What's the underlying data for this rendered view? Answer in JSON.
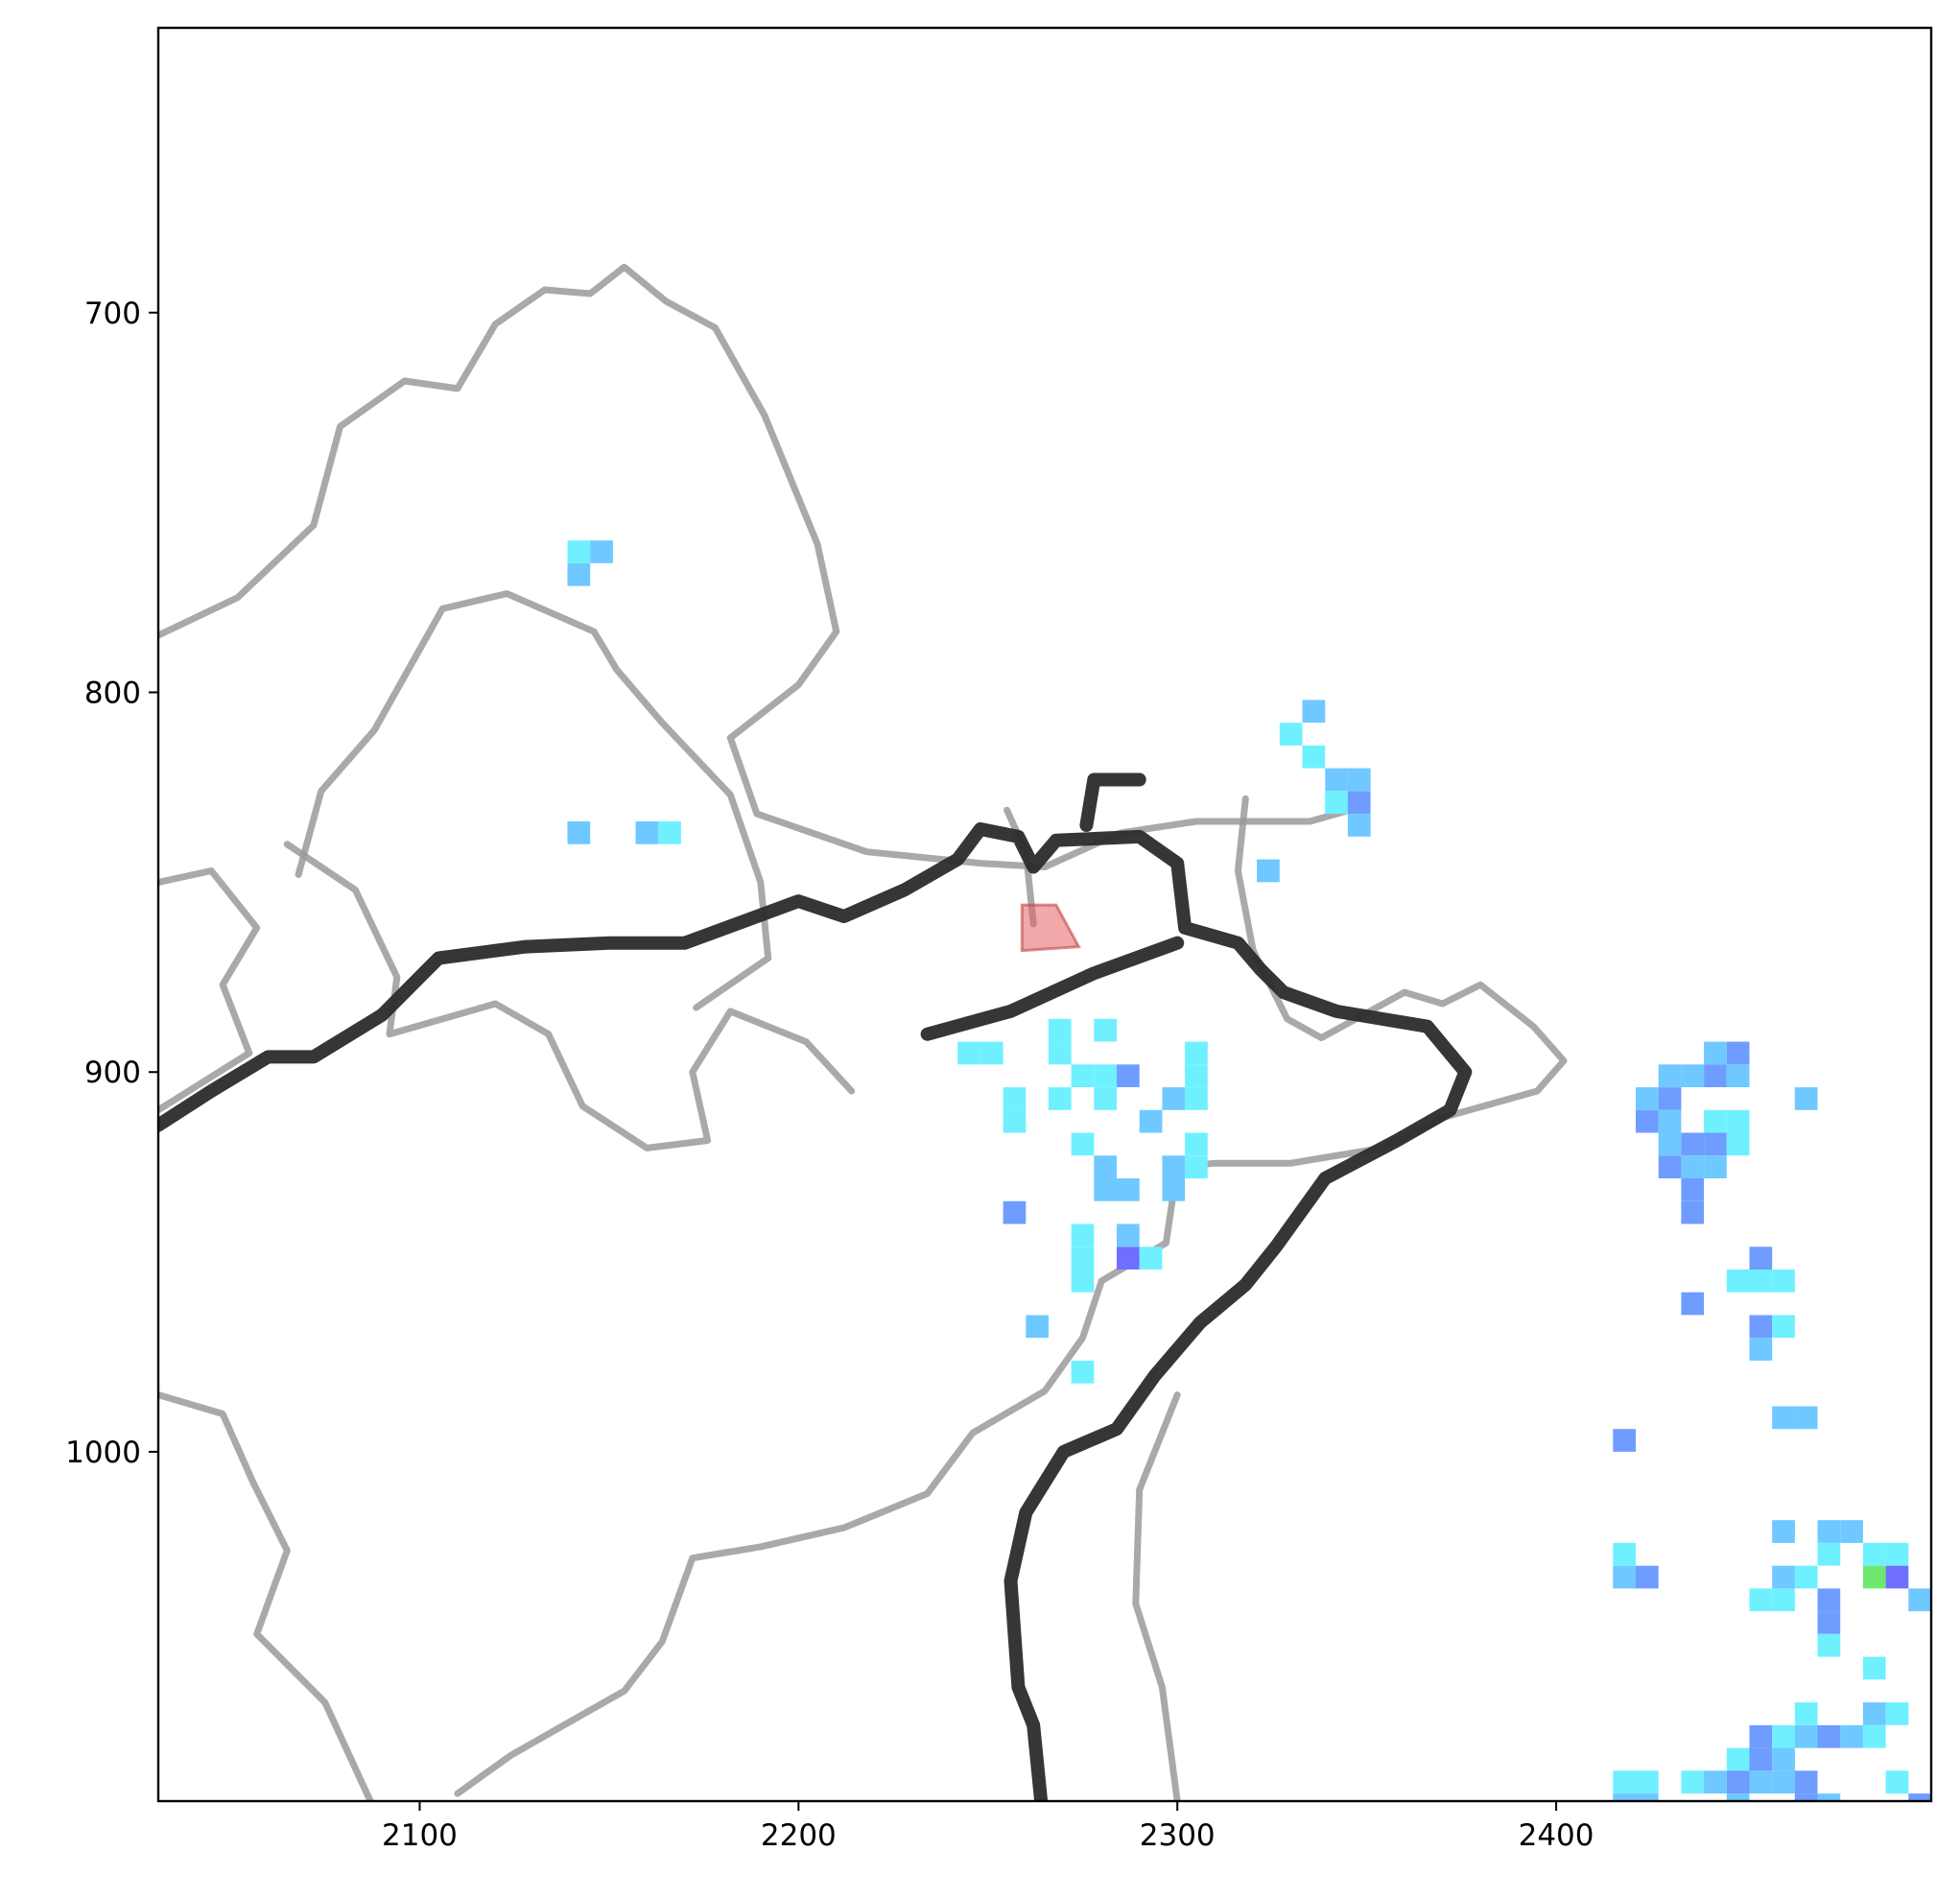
{
  "chart_data": {
    "type": "heatmap",
    "title": "",
    "xlabel": "",
    "ylabel": "",
    "xlim": [
      2031,
      2499
    ],
    "ylim": [
      1092,
      625
    ],
    "x_ticks": [
      2100,
      2200,
      2300,
      2400
    ],
    "x_tick_labels": [
      "2100",
      "2200",
      "2300",
      "2400"
    ],
    "y_ticks": [
      700,
      800,
      900,
      1000
    ],
    "y_tick_labels": [
      "700",
      "800",
      "900",
      "1000"
    ],
    "grid": false,
    "legend": "none",
    "colors": {
      "cyan": "#6ff0ff",
      "sky": "#6fc8ff",
      "blue": "#6f9cff",
      "indigo": "#6f6fff",
      "green": "#6fe86f",
      "highlight": "#e86060",
      "boundary_thin": "#9a9a9a",
      "boundary_thick": "#2b2b2b"
    },
    "pixel_size": 6,
    "cells": [
      {
        "x": 2139,
        "y": 760,
        "c": "cyan"
      },
      {
        "x": 2145,
        "y": 760,
        "c": "sky"
      },
      {
        "x": 2139,
        "y": 766,
        "c": "sky"
      },
      {
        "x": 2139,
        "y": 834,
        "c": "sky"
      },
      {
        "x": 2157,
        "y": 834,
        "c": "sky"
      },
      {
        "x": 2163,
        "y": 834,
        "c": "cyan"
      },
      {
        "x": 2327,
        "y": 808,
        "c": "cyan"
      },
      {
        "x": 2333,
        "y": 802,
        "c": "sky"
      },
      {
        "x": 2333,
        "y": 814,
        "c": "cyan"
      },
      {
        "x": 2339,
        "y": 820,
        "c": "sky"
      },
      {
        "x": 2345,
        "y": 820,
        "c": "sky"
      },
      {
        "x": 2339,
        "y": 826,
        "c": "cyan"
      },
      {
        "x": 2345,
        "y": 826,
        "c": "blue"
      },
      {
        "x": 2345,
        "y": 832,
        "c": "sky"
      },
      {
        "x": 2321,
        "y": 844,
        "c": "sky"
      },
      {
        "x": 2242,
        "y": 892,
        "c": "cyan"
      },
      {
        "x": 2248,
        "y": 892,
        "c": "cyan"
      },
      {
        "x": 2266,
        "y": 886,
        "c": "cyan"
      },
      {
        "x": 2266,
        "y": 892,
        "c": "cyan"
      },
      {
        "x": 2278,
        "y": 886,
        "c": "cyan"
      },
      {
        "x": 2272,
        "y": 898,
        "c": "cyan"
      },
      {
        "x": 2278,
        "y": 898,
        "c": "cyan"
      },
      {
        "x": 2284,
        "y": 898,
        "c": "blue"
      },
      {
        "x": 2254,
        "y": 904,
        "c": "cyan"
      },
      {
        "x": 2254,
        "y": 910,
        "c": "cyan"
      },
      {
        "x": 2266,
        "y": 904,
        "c": "cyan"
      },
      {
        "x": 2278,
        "y": 904,
        "c": "cyan"
      },
      {
        "x": 2290,
        "y": 910,
        "c": "sky"
      },
      {
        "x": 2302,
        "y": 892,
        "c": "cyan"
      },
      {
        "x": 2302,
        "y": 898,
        "c": "cyan"
      },
      {
        "x": 2302,
        "y": 904,
        "c": "cyan"
      },
      {
        "x": 2296,
        "y": 904,
        "c": "sky"
      },
      {
        "x": 2272,
        "y": 916,
        "c": "cyan"
      },
      {
        "x": 2278,
        "y": 922,
        "c": "sky"
      },
      {
        "x": 2278,
        "y": 928,
        "c": "sky"
      },
      {
        "x": 2284,
        "y": 928,
        "c": "sky"
      },
      {
        "x": 2296,
        "y": 922,
        "c": "sky"
      },
      {
        "x": 2302,
        "y": 916,
        "c": "cyan"
      },
      {
        "x": 2302,
        "y": 922,
        "c": "cyan"
      },
      {
        "x": 2296,
        "y": 928,
        "c": "sky"
      },
      {
        "x": 2254,
        "y": 934,
        "c": "blue"
      },
      {
        "x": 2272,
        "y": 940,
        "c": "cyan"
      },
      {
        "x": 2272,
        "y": 946,
        "c": "cyan"
      },
      {
        "x": 2272,
        "y": 952,
        "c": "cyan"
      },
      {
        "x": 2284,
        "y": 940,
        "c": "sky"
      },
      {
        "x": 2284,
        "y": 946,
        "c": "indigo"
      },
      {
        "x": 2290,
        "y": 946,
        "c": "cyan"
      },
      {
        "x": 2260,
        "y": 964,
        "c": "sky"
      },
      {
        "x": 2272,
        "y": 976,
        "c": "cyan"
      },
      {
        "x": 2439,
        "y": 892,
        "c": "sky"
      },
      {
        "x": 2445,
        "y": 892,
        "c": "blue"
      },
      {
        "x": 2427,
        "y": 898,
        "c": "sky"
      },
      {
        "x": 2433,
        "y": 898,
        "c": "sky"
      },
      {
        "x": 2439,
        "y": 898,
        "c": "blue"
      },
      {
        "x": 2445,
        "y": 898,
        "c": "sky"
      },
      {
        "x": 2421,
        "y": 904,
        "c": "sky"
      },
      {
        "x": 2427,
        "y": 904,
        "c": "blue"
      },
      {
        "x": 2421,
        "y": 910,
        "c": "blue"
      },
      {
        "x": 2427,
        "y": 910,
        "c": "sky"
      },
      {
        "x": 2439,
        "y": 910,
        "c": "cyan"
      },
      {
        "x": 2445,
        "y": 910,
        "c": "cyan"
      },
      {
        "x": 2427,
        "y": 916,
        "c": "sky"
      },
      {
        "x": 2433,
        "y": 916,
        "c": "blue"
      },
      {
        "x": 2439,
        "y": 916,
        "c": "blue"
      },
      {
        "x": 2445,
        "y": 916,
        "c": "cyan"
      },
      {
        "x": 2427,
        "y": 922,
        "c": "blue"
      },
      {
        "x": 2433,
        "y": 922,
        "c": "sky"
      },
      {
        "x": 2439,
        "y": 922,
        "c": "sky"
      },
      {
        "x": 2433,
        "y": 928,
        "c": "blue"
      },
      {
        "x": 2433,
        "y": 934,
        "c": "blue"
      },
      {
        "x": 2463,
        "y": 904,
        "c": "sky"
      },
      {
        "x": 2451,
        "y": 946,
        "c": "blue"
      },
      {
        "x": 2445,
        "y": 952,
        "c": "cyan"
      },
      {
        "x": 2451,
        "y": 952,
        "c": "cyan"
      },
      {
        "x": 2457,
        "y": 952,
        "c": "cyan"
      },
      {
        "x": 2433,
        "y": 958,
        "c": "blue"
      },
      {
        "x": 2451,
        "y": 964,
        "c": "blue"
      },
      {
        "x": 2457,
        "y": 964,
        "c": "cyan"
      },
      {
        "x": 2451,
        "y": 970,
        "c": "sky"
      },
      {
        "x": 2457,
        "y": 988,
        "c": "sky"
      },
      {
        "x": 2463,
        "y": 988,
        "c": "sky"
      },
      {
        "x": 2415,
        "y": 994,
        "c": "blue"
      },
      {
        "x": 2457,
        "y": 1018,
        "c": "sky"
      },
      {
        "x": 2469,
        "y": 1018,
        "c": "sky"
      },
      {
        "x": 2475,
        "y": 1018,
        "c": "sky"
      },
      {
        "x": 2481,
        "y": 1024,
        "c": "cyan"
      },
      {
        "x": 2487,
        "y": 1024,
        "c": "cyan"
      },
      {
        "x": 2415,
        "y": 1024,
        "c": "cyan"
      },
      {
        "x": 2415,
        "y": 1030,
        "c": "sky"
      },
      {
        "x": 2421,
        "y": 1030,
        "c": "blue"
      },
      {
        "x": 2457,
        "y": 1030,
        "c": "sky"
      },
      {
        "x": 2463,
        "y": 1030,
        "c": "cyan"
      },
      {
        "x": 2481,
        "y": 1030,
        "c": "green"
      },
      {
        "x": 2487,
        "y": 1030,
        "c": "indigo"
      },
      {
        "x": 2469,
        "y": 1024,
        "c": "cyan"
      },
      {
        "x": 2451,
        "y": 1036,
        "c": "cyan"
      },
      {
        "x": 2457,
        "y": 1036,
        "c": "cyan"
      },
      {
        "x": 2469,
        "y": 1036,
        "c": "blue"
      },
      {
        "x": 2493,
        "y": 1036,
        "c": "sky"
      },
      {
        "x": 2469,
        "y": 1042,
        "c": "blue"
      },
      {
        "x": 2469,
        "y": 1048,
        "c": "cyan"
      },
      {
        "x": 2481,
        "y": 1054,
        "c": "cyan"
      },
      {
        "x": 2463,
        "y": 1066,
        "c": "cyan"
      },
      {
        "x": 2481,
        "y": 1066,
        "c": "sky"
      },
      {
        "x": 2487,
        "y": 1066,
        "c": "cyan"
      },
      {
        "x": 2451,
        "y": 1072,
        "c": "blue"
      },
      {
        "x": 2457,
        "y": 1072,
        "c": "cyan"
      },
      {
        "x": 2463,
        "y": 1072,
        "c": "sky"
      },
      {
        "x": 2469,
        "y": 1072,
        "c": "blue"
      },
      {
        "x": 2475,
        "y": 1072,
        "c": "sky"
      },
      {
        "x": 2481,
        "y": 1072,
        "c": "cyan"
      },
      {
        "x": 2445,
        "y": 1078,
        "c": "cyan"
      },
      {
        "x": 2451,
        "y": 1078,
        "c": "blue"
      },
      {
        "x": 2457,
        "y": 1078,
        "c": "sky"
      },
      {
        "x": 2415,
        "y": 1084,
        "c": "cyan"
      },
      {
        "x": 2421,
        "y": 1084,
        "c": "cyan"
      },
      {
        "x": 2433,
        "y": 1084,
        "c": "cyan"
      },
      {
        "x": 2439,
        "y": 1084,
        "c": "sky"
      },
      {
        "x": 2445,
        "y": 1084,
        "c": "blue"
      },
      {
        "x": 2451,
        "y": 1084,
        "c": "sky"
      },
      {
        "x": 2457,
        "y": 1084,
        "c": "sky"
      },
      {
        "x": 2463,
        "y": 1084,
        "c": "blue"
      },
      {
        "x": 2487,
        "y": 1084,
        "c": "cyan"
      },
      {
        "x": 2415,
        "y": 1090,
        "c": "sky"
      },
      {
        "x": 2421,
        "y": 1090,
        "c": "sky"
      },
      {
        "x": 2445,
        "y": 1090,
        "c": "sky"
      },
      {
        "x": 2463,
        "y": 1090,
        "c": "blue"
      },
      {
        "x": 2469,
        "y": 1090,
        "c": "sky"
      },
      {
        "x": 2493,
        "y": 1090,
        "c": "blue"
      }
    ],
    "highlight_polygon": [
      [
        2259,
        856
      ],
      [
        2268,
        856
      ],
      [
        2274,
        867
      ],
      [
        2259,
        868
      ]
    ],
    "boundaries_thin": [
      [
        [
          2031,
          785
        ],
        [
          2052,
          775
        ],
        [
          2072,
          756
        ],
        [
          2079,
          730
        ],
        [
          2096,
          718
        ],
        [
          2110,
          720
        ],
        [
          2120,
          703
        ],
        [
          2133,
          694
        ],
        [
          2145,
          695
        ],
        [
          2154,
          688
        ],
        [
          2165,
          697
        ],
        [
          2178,
          704
        ],
        [
          2191,
          727
        ],
        [
          2205,
          761
        ],
        [
          2210,
          784
        ],
        [
          2200,
          798
        ],
        [
          2182,
          812
        ],
        [
          2189,
          832
        ],
        [
          2218,
          842
        ],
        [
          2248,
          845
        ],
        [
          2265,
          846
        ],
        [
          2285,
          837
        ],
        [
          2305,
          834
        ],
        [
          2335,
          834
        ],
        [
          2349,
          830
        ]
      ],
      [
        [
          2031,
          850
        ],
        [
          2045,
          847
        ],
        [
          2057,
          862
        ],
        [
          2048,
          877
        ],
        [
          2055,
          895
        ],
        [
          2031,
          910
        ]
      ],
      [
        [
          2065,
          840
        ],
        [
          2083,
          852
        ],
        [
          2094,
          875
        ],
        [
          2092,
          890
        ],
        [
          2120,
          882
        ],
        [
          2134,
          890
        ],
        [
          2143,
          909
        ],
        [
          2160,
          920
        ],
        [
          2176,
          918
        ],
        [
          2172,
          900
        ],
        [
          2182,
          884
        ],
        [
          2202,
          892
        ],
        [
          2214,
          905
        ]
      ],
      [
        [
          2173,
          883
        ],
        [
          2192,
          870
        ],
        [
          2190,
          850
        ],
        [
          2182,
          827
        ],
        [
          2164,
          808
        ],
        [
          2152,
          794
        ],
        [
          2146,
          784
        ],
        [
          2123,
          774
        ],
        [
          2106,
          778
        ],
        [
          2088,
          810
        ],
        [
          2074,
          826
        ],
        [
          2068,
          848
        ]
      ],
      [
        [
          2262,
          861
        ],
        [
          2260,
          842
        ],
        [
          2255,
          831
        ]
      ],
      [
        [
          2318,
          828
        ],
        [
          2316,
          847
        ],
        [
          2320,
          868
        ],
        [
          2329,
          886
        ],
        [
          2338,
          891
        ],
        [
          2360,
          879
        ],
        [
          2370,
          882
        ],
        [
          2380,
          877
        ],
        [
          2394,
          888
        ],
        [
          2402,
          897
        ],
        [
          2395,
          905
        ],
        [
          2370,
          912
        ],
        [
          2354,
          920
        ],
        [
          2330,
          924
        ],
        [
          2310,
          924
        ],
        [
          2300,
          925
        ],
        [
          2297,
          945
        ],
        [
          2280,
          955
        ],
        [
          2275,
          970
        ],
        [
          2265,
          984
        ],
        [
          2246,
          995
        ],
        [
          2234,
          1011
        ],
        [
          2212,
          1020
        ],
        [
          2190,
          1025
        ],
        [
          2172,
          1028
        ],
        [
          2164,
          1050
        ],
        [
          2154,
          1063
        ],
        [
          2138,
          1072
        ],
        [
          2124,
          1080
        ],
        [
          2110,
          1090
        ]
      ],
      [
        [
          2031,
          985
        ],
        [
          2048,
          990
        ],
        [
          2056,
          1008
        ],
        [
          2065,
          1026
        ],
        [
          2057,
          1048
        ],
        [
          2075,
          1066
        ],
        [
          2087,
          1092
        ]
      ],
      [
        [
          2300,
          1092
        ],
        [
          2296,
          1062
        ],
        [
          2289,
          1040
        ],
        [
          2290,
          1010
        ],
        [
          2300,
          985
        ]
      ]
    ],
    "boundaries_thick": [
      [
        [
          2031,
          914
        ],
        [
          2045,
          905
        ],
        [
          2060,
          896
        ],
        [
          2072,
          896
        ],
        [
          2090,
          885
        ],
        [
          2105,
          870
        ],
        [
          2128,
          867
        ],
        [
          2150,
          866
        ],
        [
          2170,
          866
        ],
        [
          2200,
          855
        ],
        [
          2212,
          859
        ],
        [
          2228,
          852
        ],
        [
          2242,
          844
        ],
        [
          2248,
          836
        ],
        [
          2258,
          838
        ],
        [
          2262,
          846
        ],
        [
          2268,
          839
        ],
        [
          2290,
          838
        ],
        [
          2300,
          845
        ],
        [
          2302,
          862
        ],
        [
          2316,
          866
        ],
        [
          2322,
          873
        ],
        [
          2328,
          879
        ],
        [
          2342,
          884
        ],
        [
          2366,
          888
        ],
        [
          2376,
          900
        ],
        [
          2372,
          910
        ],
        [
          2358,
          918
        ],
        [
          2339,
          928
        ],
        [
          2326,
          946
        ],
        [
          2318,
          956
        ],
        [
          2306,
          966
        ],
        [
          2294,
          980
        ],
        [
          2284,
          994
        ],
        [
          2270,
          1000
        ],
        [
          2260,
          1016
        ],
        [
          2256,
          1034
        ],
        [
          2258,
          1062
        ],
        [
          2262,
          1072
        ],
        [
          2264,
          1092
        ]
      ],
      [
        [
          2234,
          890
        ],
        [
          2256,
          884
        ],
        [
          2278,
          874
        ],
        [
          2300,
          866
        ]
      ],
      [
        [
          2276,
          835
        ],
        [
          2278,
          823
        ],
        [
          2290,
          823
        ]
      ]
    ]
  }
}
